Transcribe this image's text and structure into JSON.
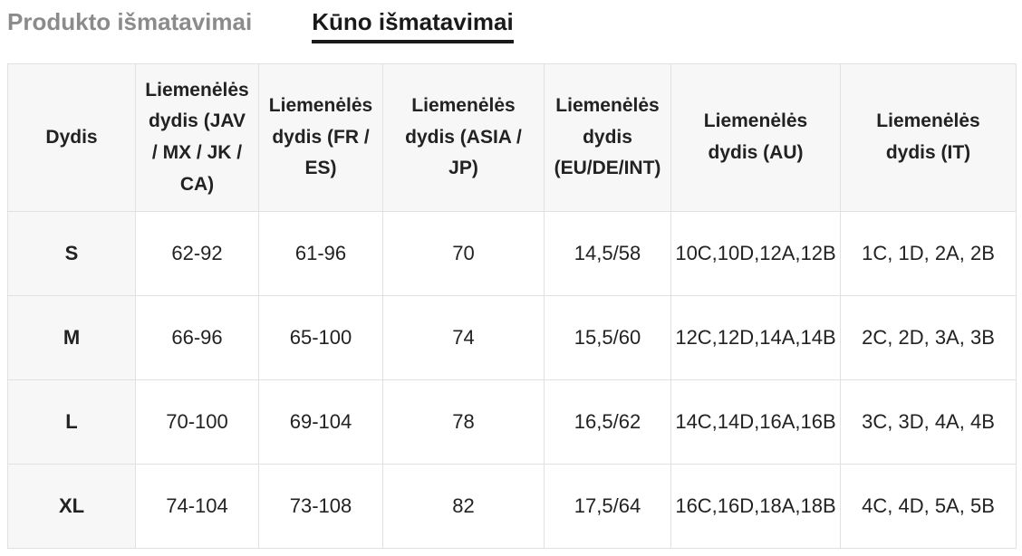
{
  "tabs": {
    "product": {
      "label": "Produkto išmatavimai"
    },
    "body": {
      "label": "Kūno išmatavimai"
    }
  },
  "size_chart": {
    "columns": [
      "Dydis",
      "Liemenėlės dydis (JAV / MX / JK / CA)",
      "Liemenėlės dydis (FR / ES)",
      "Liemenėlės dydis (ASIA / JP)",
      "Liemenėlės dydis (EU/DE/INT)",
      "Liemenėlės dydis (AU)",
      "Liemenėlės dydis (IT)"
    ],
    "rows": [
      {
        "size": "S",
        "values": [
          "62-92",
          "61-96",
          "70",
          "14,5/58",
          "10C,10D,12A,12B",
          "1C, 1D, 2A, 2B"
        ]
      },
      {
        "size": "M",
        "values": [
          "66-96",
          "65-100",
          "74",
          "15,5/60",
          "12C,12D,14A,14B",
          "2C, 2D, 3A, 3B"
        ]
      },
      {
        "size": "L",
        "values": [
          "70-100",
          "69-104",
          "78",
          "16,5/62",
          "14C,14D,16A,16B",
          "3C, 3D, 4A, 4B"
        ]
      },
      {
        "size": "XL",
        "values": [
          "74-104",
          "73-108",
          "82",
          "17,5/64",
          "16C,16D,18A,18B",
          "4C, 4D, 5A, 5B"
        ]
      }
    ]
  },
  "colors": {
    "header_bg": "#f7f7f7",
    "border": "#e1e1e1",
    "active_tab": "#1a1a1a",
    "inactive_tab": "#8b8b8b"
  }
}
